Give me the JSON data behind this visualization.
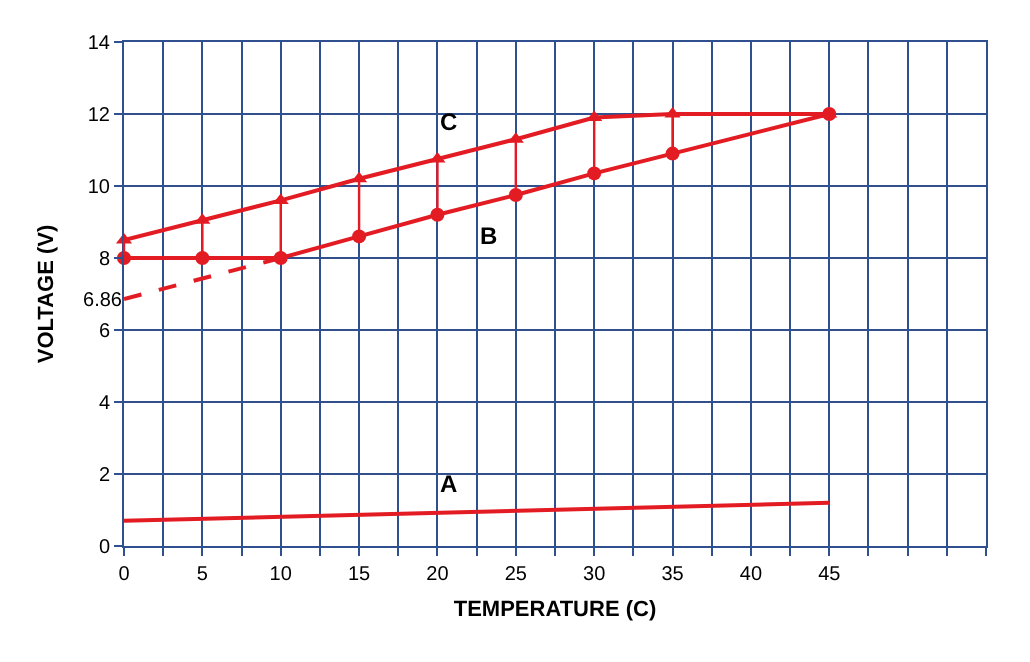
{
  "chart_data": {
    "type": "line",
    "xlabel": "TEMPERATURE (C)",
    "ylabel": "VOLTAGE (V)",
    "x": [
      0,
      5,
      10,
      15,
      20,
      25,
      30,
      35,
      45
    ],
    "series": [
      {
        "name": "A",
        "color": "#e31b23",
        "marker": "none",
        "x": [
          0,
          45
        ],
        "values": [
          0.7,
          1.2
        ]
      },
      {
        "name": "B",
        "color": "#e31b23",
        "marker": "circle",
        "values": [
          8,
          8,
          8,
          8.6,
          9.2,
          9.75,
          10.35,
          10.9,
          12
        ]
      },
      {
        "name": "C",
        "color": "#e31b23",
        "marker": "triangle",
        "values": [
          8.5,
          9.05,
          9.6,
          10.2,
          10.75,
          11.3,
          11.9,
          12,
          12
        ]
      },
      {
        "name": null,
        "color": "#e31b23",
        "marker": "none",
        "line_style": "dashed",
        "x": [
          0,
          10
        ],
        "values": [
          6.86,
          8
        ]
      }
    ],
    "xlim": [
      0,
      55
    ],
    "xticks": [
      0,
      {
        "value": 2.5,
        "label": null
      },
      5,
      {
        "value": 7.5,
        "label": null
      },
      10,
      {
        "value": 12.5,
        "label": null
      },
      15,
      {
        "value": 17.5,
        "label": null
      },
      20,
      {
        "value": 22.5,
        "label": null
      },
      25,
      {
        "value": 27.5,
        "label": null
      },
      30,
      {
        "value": 32.5,
        "label": null
      },
      35,
      {
        "value": 37.5,
        "label": null
      },
      40,
      {
        "value": 42.5,
        "label": null
      },
      45,
      {
        "value": 47.5,
        "label": null
      },
      {
        "value": 50,
        "label": null
      },
      {
        "value": 52.5,
        "label": null
      },
      {
        "value": 55,
        "label": null
      }
    ],
    "ylim": [
      0,
      14
    ],
    "yticks": [
      0,
      2,
      4,
      6,
      {
        "value": 6.86,
        "label": "6.86"
      },
      8,
      10,
      12,
      14
    ],
    "grid": true,
    "legend": false,
    "line_style": "solid"
  }
}
